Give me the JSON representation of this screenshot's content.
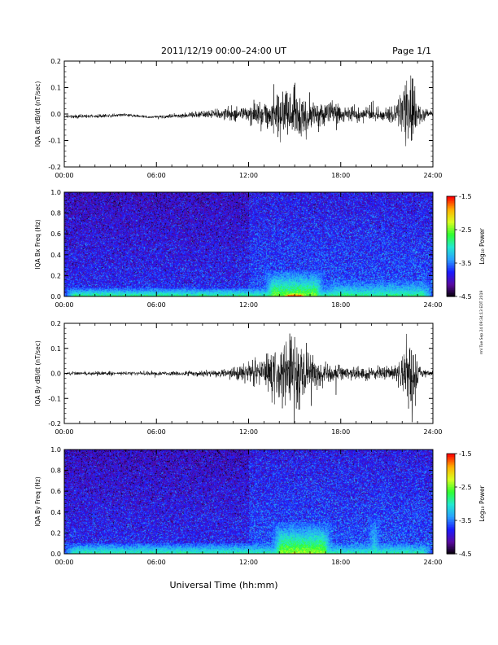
{
  "header": {
    "title": "2011/12/19   00:00–24:00 UT",
    "page": "Page 1/1"
  },
  "side_note": "rml Tue Sep 24 09:34:13 EDT 2019",
  "x_axis_label": "Universal Time (hh:mm)",
  "colors": {
    "trace": "#000000",
    "colormap": [
      "#000000",
      "#5a0aa0",
      "#1a1aff",
      "#2aa0ff",
      "#22e8d0",
      "#30ff30",
      "#d8ff20",
      "#ffb000",
      "#ff0000"
    ]
  },
  "chart_data": [
    {
      "type": "line",
      "name": "panel-bx-dbdt",
      "ylabel": "IQA Bx dB/dt (nT/sec)",
      "xlim": [
        0,
        24
      ],
      "ylim": [
        -0.2,
        0.2
      ],
      "x_ticks": [
        "00:00",
        "06:00",
        "12:00",
        "18:00",
        "24:00"
      ],
      "y_ticks": [
        "-0.2",
        "-0.1",
        "0.0",
        "0.1",
        "0.2"
      ],
      "envelope": [
        {
          "x": 0,
          "amp": 0.008,
          "offset": -0.01
        },
        {
          "x": 2,
          "amp": 0.009,
          "offset": -0.008
        },
        {
          "x": 4,
          "amp": 0.007,
          "offset": -0.003
        },
        {
          "x": 5.5,
          "amp": 0.006,
          "offset": -0.012
        },
        {
          "x": 8,
          "amp": 0.012,
          "offset": -0.005
        },
        {
          "x": 9.5,
          "amp": 0.02,
          "offset": 0.0
        },
        {
          "x": 11,
          "amp": 0.03,
          "offset": 0.0
        },
        {
          "x": 12,
          "amp": 0.04,
          "offset": 0.0
        },
        {
          "x": 13.5,
          "amp": 0.08,
          "offset": 0.0
        },
        {
          "x": 14.8,
          "amp": 0.13,
          "offset": 0.0
        },
        {
          "x": 15.6,
          "amp": 0.1,
          "offset": 0.0
        },
        {
          "x": 17,
          "amp": 0.05,
          "offset": 0.0
        },
        {
          "x": 19,
          "amp": 0.035,
          "offset": 0.0
        },
        {
          "x": 21.5,
          "amp": 0.035,
          "offset": 0.0
        },
        {
          "x": 22.6,
          "amp": 0.2,
          "offset": 0.0
        },
        {
          "x": 23.2,
          "amp": 0.03,
          "offset": 0.0
        },
        {
          "x": 24,
          "amp": 0.02,
          "offset": 0.0
        }
      ]
    },
    {
      "type": "heatmap",
      "name": "panel-bx-spectrogram",
      "ylabel": "IQA Bx Freq (Hz)",
      "xlim": [
        0,
        24
      ],
      "ylim": [
        0.0,
        1.0
      ],
      "x_ticks": [
        "00:00",
        "06:00",
        "12:00",
        "18:00",
        "24:00"
      ],
      "y_ticks": [
        "0.0",
        "0.2",
        "0.4",
        "0.6",
        "0.8",
        "1.0"
      ],
      "colorbar": {
        "label": "Log₁₀ Power",
        "ticks": [
          "-1.5",
          "-2.5",
          "-3.5",
          "-4.5"
        ],
        "range": [
          -4.5,
          -1.5
        ]
      },
      "features": [
        {
          "x0": 0,
          "x1": 24,
          "fmax": 0.08,
          "level": -2.8
        },
        {
          "x0": 13,
          "x1": 17,
          "fmax": 0.25,
          "level": -2.5
        },
        {
          "x0": 14,
          "x1": 16,
          "fmax": 0.05,
          "level": -1.5
        },
        {
          "x0": 17,
          "x1": 24,
          "fmax": 0.15,
          "level": -2.9
        }
      ]
    },
    {
      "type": "line",
      "name": "panel-by-dbdt",
      "ylabel": "IQA By dB/dt (nT/sec)",
      "xlim": [
        0,
        24
      ],
      "ylim": [
        -0.2,
        0.2
      ],
      "x_ticks": [
        "00:00",
        "06:00",
        "12:00",
        "18:00",
        "24:00"
      ],
      "y_ticks": [
        "-0.2",
        "-0.1",
        "0.0",
        "0.1",
        "0.2"
      ],
      "envelope": [
        {
          "x": 0,
          "amp": 0.008,
          "offset": 0.0
        },
        {
          "x": 3,
          "amp": 0.01,
          "offset": 0.0
        },
        {
          "x": 6,
          "amp": 0.01,
          "offset": 0.0
        },
        {
          "x": 9,
          "amp": 0.015,
          "offset": 0.0
        },
        {
          "x": 11,
          "amp": 0.025,
          "offset": 0.0
        },
        {
          "x": 12.5,
          "amp": 0.06,
          "offset": 0.0
        },
        {
          "x": 14,
          "amp": 0.14,
          "offset": 0.0
        },
        {
          "x": 15,
          "amp": 0.2,
          "offset": 0.0
        },
        {
          "x": 16,
          "amp": 0.12,
          "offset": 0.0
        },
        {
          "x": 17,
          "amp": 0.05,
          "offset": 0.0
        },
        {
          "x": 19,
          "amp": 0.03,
          "offset": 0.0
        },
        {
          "x": 21.5,
          "amp": 0.03,
          "offset": 0.0
        },
        {
          "x": 22.6,
          "amp": 0.2,
          "offset": 0.0
        },
        {
          "x": 23.2,
          "amp": 0.02,
          "offset": 0.0
        },
        {
          "x": 24,
          "amp": 0.015,
          "offset": 0.0
        }
      ]
    },
    {
      "type": "heatmap",
      "name": "panel-by-spectrogram",
      "ylabel": "IQA By Freq (Hz)",
      "xlim": [
        0,
        24
      ],
      "ylim": [
        0.0,
        1.0
      ],
      "x_ticks": [
        "00:00",
        "06:00",
        "12:00",
        "18:00",
        "24:00"
      ],
      "y_ticks": [
        "0.0",
        "0.2",
        "0.4",
        "0.6",
        "0.8",
        "1.0"
      ],
      "colorbar": {
        "label": "Log₁₀ Power",
        "ticks": [
          "-1.5",
          "-2.5",
          "-3.5",
          "-4.5"
        ],
        "range": [
          -4.5,
          -1.5
        ]
      },
      "features": [
        {
          "x0": 0,
          "x1": 24,
          "fmax": 0.1,
          "level": -2.9
        },
        {
          "x0": 13.5,
          "x1": 17.5,
          "fmax": 0.3,
          "level": -2.4
        },
        {
          "x0": 14.5,
          "x1": 15.5,
          "fmax": 0.05,
          "level": -1.5
        },
        {
          "x0": 19.8,
          "x1": 20.6,
          "fmax": 0.35,
          "level": -2.6
        }
      ]
    }
  ]
}
